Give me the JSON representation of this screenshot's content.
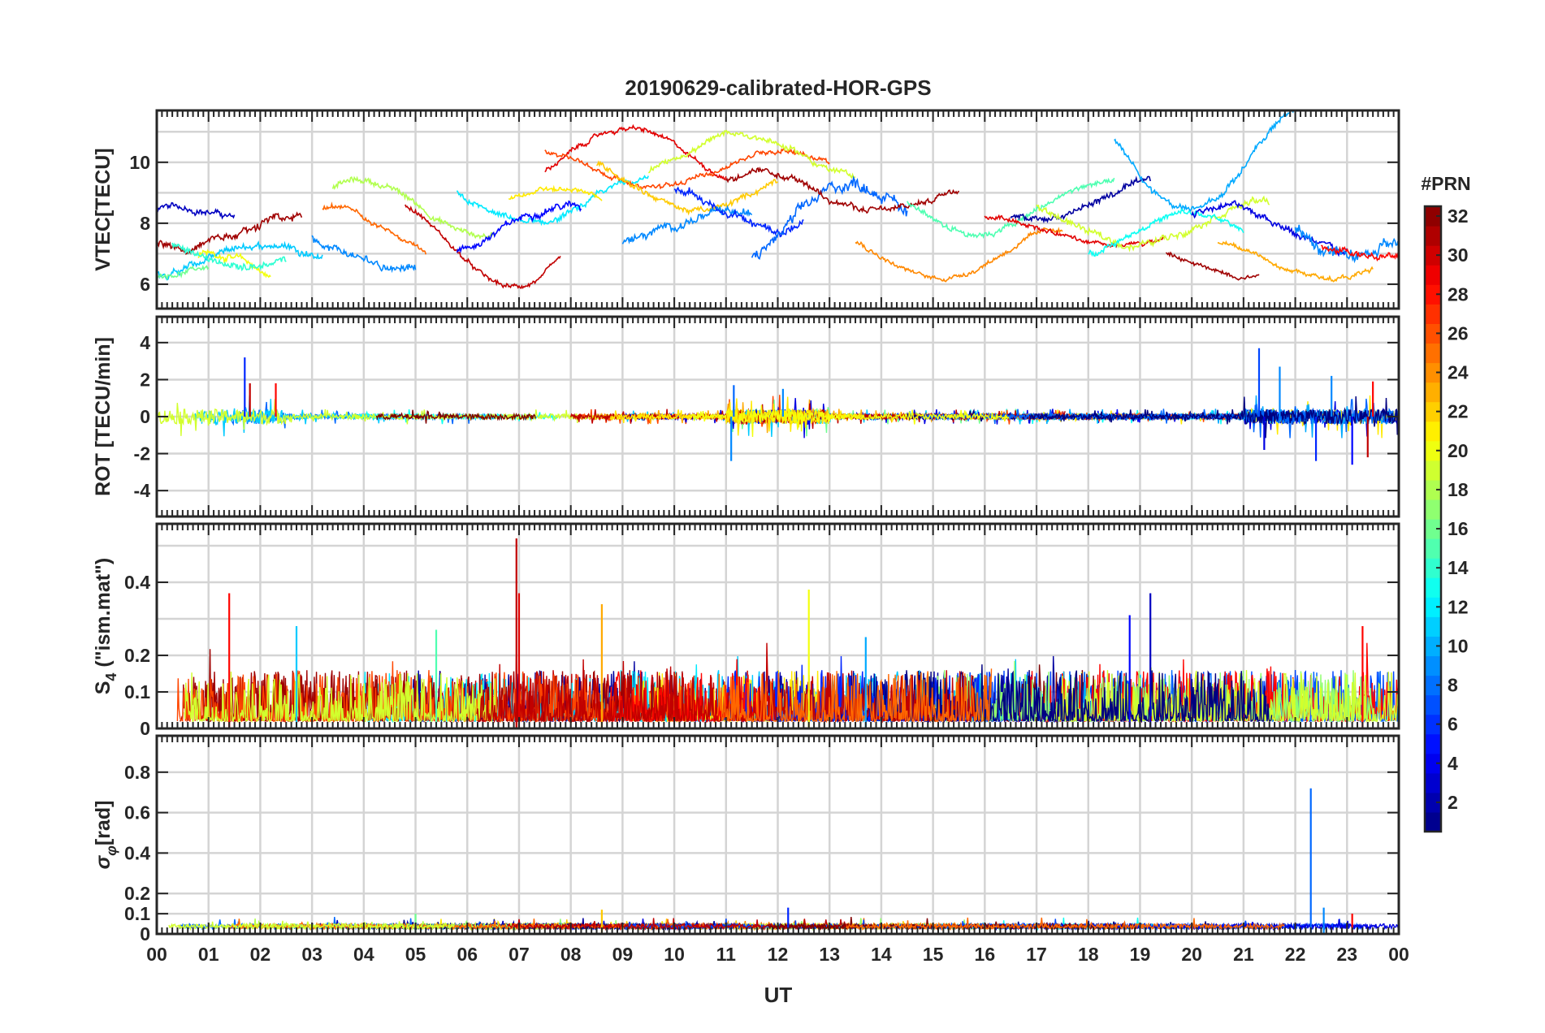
{
  "chart_data": {
    "type": "line",
    "title": "20190629-calibrated-HOR-GPS",
    "xlabel": "UT",
    "x_tick_labels": [
      "00",
      "01",
      "02",
      "03",
      "04",
      "05",
      "06",
      "07",
      "08",
      "09",
      "10",
      "11",
      "12",
      "13",
      "14",
      "15",
      "16",
      "17",
      "18",
      "19",
      "20",
      "21",
      "22",
      "23",
      "00"
    ],
    "xlim": [
      0,
      24
    ],
    "colorbar": {
      "title": "#PRN",
      "range": [
        1,
        32
      ],
      "tick_labels": [
        "2",
        "4",
        "6",
        "8",
        "10",
        "12",
        "14",
        "16",
        "18",
        "20",
        "22",
        "24",
        "26",
        "28",
        "30",
        "32"
      ],
      "tick_values": [
        2,
        4,
        6,
        8,
        10,
        12,
        14,
        16,
        18,
        20,
        22,
        24,
        26,
        28,
        30,
        32
      ],
      "colormap": "jet"
    },
    "panels": [
      {
        "id": "vtec",
        "ylabel": "VTEC[TECU]",
        "ylim": [
          5.2,
          11.7
        ],
        "y_tick_values": [
          6,
          8,
          10
        ],
        "y_tick_labels": [
          "6",
          "8",
          "10"
        ],
        "gridlines_y": [
          6,
          7,
          8,
          9,
          10,
          11
        ],
        "series": [
          {
            "prn": 31,
            "start": 0.0,
            "end": 2.8,
            "base": 7.7,
            "amp": 0.5,
            "noise": 0.35
          },
          {
            "prn": 3,
            "start": 0.0,
            "end": 1.5,
            "base": 8.1,
            "amp": 0.4,
            "noise": 0.25
          },
          {
            "prn": 11,
            "start": 0.0,
            "end": 3.2,
            "base": 6.8,
            "amp": 0.5,
            "noise": 0.3
          },
          {
            "prn": 20,
            "start": 0.8,
            "end": 2.2,
            "base": 6.2,
            "amp": 0.8,
            "noise": 0.3
          },
          {
            "prn": 14,
            "start": 0.3,
            "end": 2.5,
            "base": 7.2,
            "amp": 0.6,
            "noise": 0.3
          },
          {
            "prn": 16,
            "start": 0.0,
            "end": 1.0,
            "base": 6.6,
            "amp": 0.3,
            "noise": 0.2
          },
          {
            "prn": 9,
            "start": 3.0,
            "end": 5.0,
            "base": 7.2,
            "amp": 0.6,
            "noise": 0.35
          },
          {
            "prn": 18,
            "start": 3.4,
            "end": 6.5,
            "base": 8.5,
            "amp": 0.9,
            "noise": 0.25
          },
          {
            "prn": 25,
            "start": 3.2,
            "end": 5.2,
            "base": 7.6,
            "amp": 0.9,
            "noise": 0.2
          },
          {
            "prn": 30,
            "start": 4.8,
            "end": 7.8,
            "base": 7.3,
            "amp": 1.4,
            "noise": 0.2
          },
          {
            "prn": 12,
            "start": 5.8,
            "end": 9.5,
            "base": 8.8,
            "amp": 0.8,
            "noise": 0.25
          },
          {
            "prn": 5,
            "start": 5.8,
            "end": 8.2,
            "base": 7.8,
            "amp": 0.8,
            "noise": 0.3
          },
          {
            "prn": 21,
            "start": 6.8,
            "end": 8.6,
            "base": 8.6,
            "amp": 0.5,
            "noise": 0.2
          },
          {
            "prn": 29,
            "start": 7.5,
            "end": 11.0,
            "base": 10.2,
            "amp": 0.9,
            "noise": 0.2
          },
          {
            "prn": 26,
            "start": 7.5,
            "end": 13.0,
            "base": 9.8,
            "amp": 0.6,
            "noise": 0.2
          },
          {
            "prn": 22,
            "start": 8.5,
            "end": 12.0,
            "base": 9.2,
            "amp": 0.8,
            "noise": 0.25
          },
          {
            "prn": 19,
            "start": 9.5,
            "end": 13.5,
            "base": 10.2,
            "amp": 0.7,
            "noise": 0.25
          },
          {
            "prn": 9,
            "start": 9.0,
            "end": 11.5,
            "base": 7.8,
            "amp": 0.5,
            "noise": 0.35
          },
          {
            "prn": 6,
            "start": 10.0,
            "end": 12.5,
            "base": 8.5,
            "amp": 0.7,
            "noise": 0.35
          },
          {
            "prn": 8,
            "start": 11.5,
            "end": 14.5,
            "base": 8.0,
            "amp": 1.3,
            "noise": 0.5
          },
          {
            "prn": 31,
            "start": 11.0,
            "end": 15.5,
            "base": 9.0,
            "amp": 0.6,
            "noise": 0.25
          },
          {
            "prn": 24,
            "start": 13.5,
            "end": 17.5,
            "base": 7.0,
            "amp": 0.8,
            "noise": 0.2
          },
          {
            "prn": 15,
            "start": 14.5,
            "end": 18.5,
            "base": 8.5,
            "amp": 0.8,
            "noise": 0.25
          },
          {
            "prn": 2,
            "start": 16.5,
            "end": 19.2,
            "base": 8.7,
            "amp": 0.6,
            "noise": 0.3
          },
          {
            "prn": 29,
            "start": 16.0,
            "end": 19.5,
            "base": 7.7,
            "amp": 0.5,
            "noise": 0.2
          },
          {
            "prn": 19,
            "start": 17.0,
            "end": 21.5,
            "base": 8.0,
            "amp": 0.7,
            "noise": 0.3
          },
          {
            "prn": 10,
            "start": 18.5,
            "end": 22.5,
            "base": 10.2,
            "amp": 1.8,
            "noise": 0.3
          },
          {
            "prn": 13,
            "start": 18.0,
            "end": 21.0,
            "base": 7.6,
            "amp": 0.7,
            "noise": 0.25
          },
          {
            "prn": 4,
            "start": 20.0,
            "end": 23.0,
            "base": 7.8,
            "amp": 0.8,
            "noise": 0.3
          },
          {
            "prn": 31,
            "start": 19.5,
            "end": 21.3,
            "base": 6.8,
            "amp": 0.5,
            "noise": 0.2
          },
          {
            "prn": 23,
            "start": 20.5,
            "end": 23.5,
            "base": 6.8,
            "amp": 0.6,
            "noise": 0.2
          },
          {
            "prn": 9,
            "start": 22.0,
            "end": 24.0,
            "base": 7.8,
            "amp": 0.9,
            "noise": 0.5
          },
          {
            "prn": 28,
            "start": 22.5,
            "end": 24.0,
            "base": 7.5,
            "amp": 0.6,
            "noise": 0.3
          }
        ]
      },
      {
        "id": "rot",
        "ylabel": "ROT [TECU/min]",
        "ylim": [
          -5.4,
          5.4
        ],
        "y_tick_values": [
          -4,
          -2,
          0,
          2,
          4
        ],
        "y_tick_labels": [
          "-4",
          "-2",
          "0",
          "2",
          "4"
        ],
        "gridlines_y": [
          -4,
          -2,
          0,
          2,
          4
        ],
        "series_note": "noise around zero per PRN",
        "spikes": [
          {
            "t": 1.7,
            "v": 3.2,
            "prn": 6
          },
          {
            "t": 1.8,
            "v": 1.8,
            "prn": 30
          },
          {
            "t": 2.3,
            "v": 1.8,
            "prn": 28
          },
          {
            "t": 11.1,
            "v": -2.4,
            "prn": 9
          },
          {
            "t": 11.15,
            "v": 1.7,
            "prn": 8
          },
          {
            "t": 12.1,
            "v": 1.5,
            "prn": 9
          },
          {
            "t": 21.3,
            "v": 3.7,
            "prn": 7
          },
          {
            "t": 21.4,
            "v": -1.8,
            "prn": 4
          },
          {
            "t": 21.7,
            "v": 2.7,
            "prn": 9
          },
          {
            "t": 22.4,
            "v": -2.4,
            "prn": 6
          },
          {
            "t": 22.7,
            "v": 2.2,
            "prn": 9
          },
          {
            "t": 23.1,
            "v": -2.6,
            "prn": 5
          },
          {
            "t": 23.4,
            "v": -2.2,
            "prn": 30
          },
          {
            "t": 23.5,
            "v": 1.9,
            "prn": 28
          }
        ]
      },
      {
        "id": "s4",
        "ylabel": "S4 (\"ism.mat\")",
        "ylim": [
          0,
          0.56
        ],
        "y_tick_values": [
          0,
          0.1,
          0.2,
          0.4
        ],
        "y_tick_labels": [
          "0",
          "0.1",
          "0.2",
          "0.4"
        ],
        "gridlines_y": [
          0,
          0.1,
          0.2,
          0.3,
          0.4,
          0.5
        ],
        "spikes": [
          {
            "t": 1.4,
            "v": 0.37,
            "prn": 28
          },
          {
            "t": 2.7,
            "v": 0.28,
            "prn": 11
          },
          {
            "t": 5.4,
            "v": 0.27,
            "prn": 15
          },
          {
            "t": 6.95,
            "v": 0.52,
            "prn": 30
          },
          {
            "t": 7.0,
            "v": 0.37,
            "prn": 29
          },
          {
            "t": 8.6,
            "v": 0.34,
            "prn": 23
          },
          {
            "t": 12.6,
            "v": 0.38,
            "prn": 20
          },
          {
            "t": 13.7,
            "v": 0.25,
            "prn": 10
          },
          {
            "t": 18.8,
            "v": 0.31,
            "prn": 5
          },
          {
            "t": 19.2,
            "v": 0.37,
            "prn": 3
          },
          {
            "t": 23.3,
            "v": 0.28,
            "prn": 28
          }
        ]
      },
      {
        "id": "sigma_phi",
        "ylabel": "σφ[rad]",
        "ylim": [
          0,
          0.98
        ],
        "y_tick_values": [
          0,
          0.1,
          0.2,
          0.4,
          0.6,
          0.8
        ],
        "y_tick_labels": [
          "0",
          "0.1",
          "0.2",
          "0.4",
          "0.6",
          "0.8"
        ],
        "gridlines_y": [
          0,
          0.1,
          0.2,
          0.4,
          0.6,
          0.8
        ],
        "spikes": [
          {
            "t": 22.3,
            "v": 0.72,
            "prn": 8
          },
          {
            "t": 22.55,
            "v": 0.13,
            "prn": 9
          },
          {
            "t": 8.6,
            "v": 0.12,
            "prn": 22
          },
          {
            "t": 12.2,
            "v": 0.13,
            "prn": 6
          },
          {
            "t": 5.0,
            "v": 0.1,
            "prn": 16
          },
          {
            "t": 23.1,
            "v": 0.1,
            "prn": 28
          }
        ]
      }
    ]
  }
}
